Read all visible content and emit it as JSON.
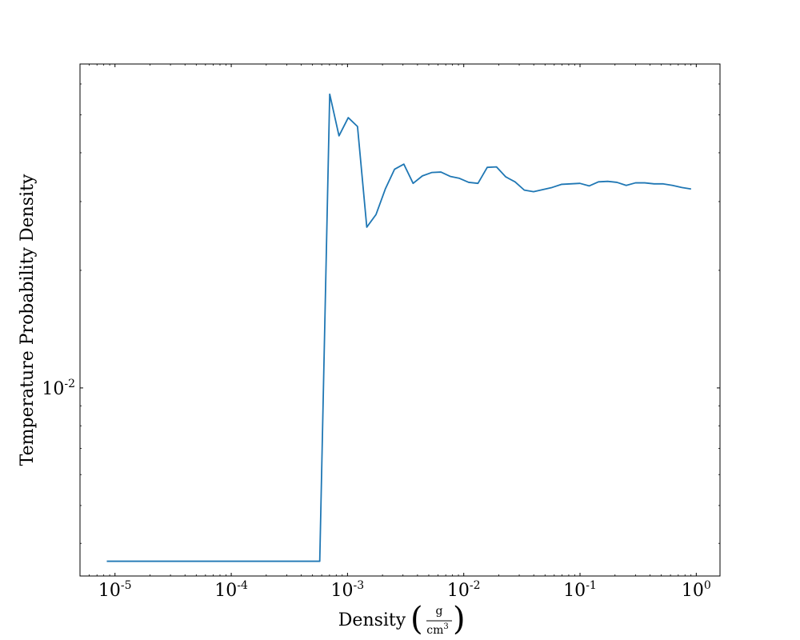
{
  "chart_data": {
    "type": "line",
    "xlabel": "Density",
    "xlabel_unit": {
      "numerator": "g",
      "denominator_base": "cm",
      "denominator_exp": "3"
    },
    "ylabel": "Temperature Probability Density",
    "x_scale": "log",
    "y_scale": "log",
    "xlim": [
      5e-06,
      1.6
    ],
    "ylim": [
      0.0033,
      0.0675
    ],
    "grid": false,
    "legend": "none",
    "line_color": "#1f77b4",
    "x_ticks": [
      {
        "base": "10",
        "exp": "-5",
        "value": 1e-05
      },
      {
        "base": "10",
        "exp": "-4",
        "value": 0.0001
      },
      {
        "base": "10",
        "exp": "-3",
        "value": 0.001
      },
      {
        "base": "10",
        "exp": "-2",
        "value": 0.01
      },
      {
        "base": "10",
        "exp": "-1",
        "value": 0.1
      },
      {
        "base": "10",
        "exp": "0",
        "value": 1
      }
    ],
    "y_ticks": [
      {
        "base": "10",
        "exp": "-2",
        "value": 0.01
      }
    ],
    "series": [
      {
        "x": [
          8.5e-06,
          0.000577,
          0.000703,
          0.000845,
          0.001015,
          0.001219,
          0.001465,
          0.00176,
          0.002114,
          0.00254,
          0.003052,
          0.003667,
          0.004406,
          0.005293,
          0.006359,
          0.00764,
          0.009179,
          0.011028,
          0.01325,
          0.015919,
          0.019125,
          0.022978,
          0.027607,
          0.033168,
          0.039849,
          0.047876,
          0.05752,
          0.069107,
          0.083028,
          0.099753,
          0.119847,
          0.143989,
          0.172994,
          0.207842,
          0.249709,
          0.300011,
          0.360445,
          0.433053,
          0.520288,
          0.625095,
          0.751014,
          0.902299
        ],
        "y": [
          0.0036,
          0.0036,
          0.0565,
          0.0442,
          0.0492,
          0.0467,
          0.0258,
          0.0278,
          0.0323,
          0.0363,
          0.0374,
          0.0334,
          0.0349,
          0.0356,
          0.0357,
          0.0348,
          0.0344,
          0.0336,
          0.0334,
          0.0367,
          0.0368,
          0.0347,
          0.0337,
          0.0321,
          0.0318,
          0.0322,
          0.0326,
          0.0332,
          0.0333,
          0.0334,
          0.0329,
          0.0337,
          0.0338,
          0.0336,
          0.033,
          0.0335,
          0.0335,
          0.0333,
          0.0333,
          0.033,
          0.0326,
          0.0323
        ]
      }
    ]
  }
}
